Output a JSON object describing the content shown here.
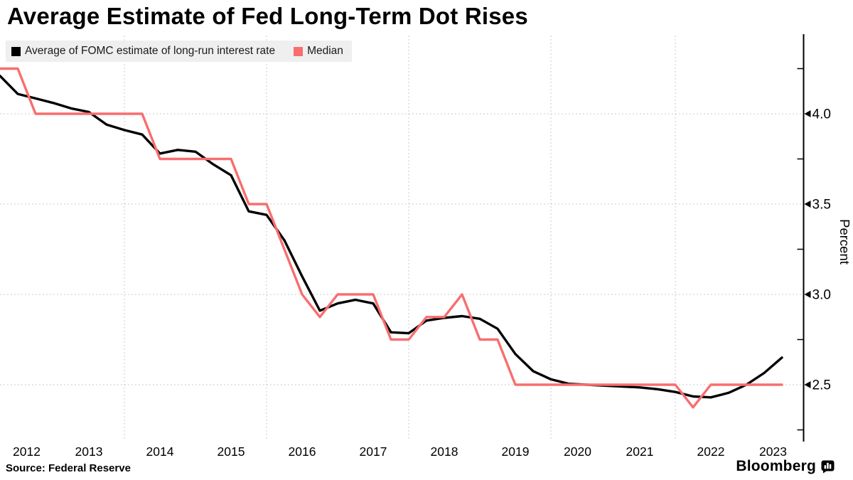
{
  "title": "Average Estimate of Fed Long-Term Dot Rises",
  "legend": {
    "average_label": "Average of FOMC estimate of long-run interest rate",
    "median_label": "Median"
  },
  "source": "Source: Federal Reserve",
  "brand": "Bloomberg",
  "colors": {
    "average": "#000000",
    "median": "#f86e6e",
    "grid": "#cbcbcb",
    "axis": "#000000",
    "legend_bg": "#efefef"
  },
  "chart_data": {
    "type": "line",
    "title": "Average Estimate of Fed Long-Term Dot Rises",
    "xlabel": "",
    "ylabel": "Percent",
    "ylim": [
      2.19,
      4.43
    ],
    "grid": "dashed",
    "legend_position": "top-left",
    "y_major_ticks": [
      {
        "value": 4.0,
        "label": "4.0"
      },
      {
        "value": 3.5,
        "label": "3.5"
      },
      {
        "value": 3.0,
        "label": "3.0"
      },
      {
        "value": 2.5,
        "label": "2.5"
      }
    ],
    "y_minor_ticks": [
      4.25,
      3.75,
      3.25,
      2.75,
      2.25
    ],
    "x_gridline_slots": [
      7,
      15,
      23,
      31,
      38
    ],
    "x_year_labels": [
      {
        "label": "2012",
        "slot": 1.5
      },
      {
        "label": "2013",
        "slot": 5
      },
      {
        "label": "2014",
        "slot": 9
      },
      {
        "label": "2015",
        "slot": 13
      },
      {
        "label": "2016",
        "slot": 17
      },
      {
        "label": "2017",
        "slot": 21
      },
      {
        "label": "2018",
        "slot": 25
      },
      {
        "label": "2019",
        "slot": 29
      },
      {
        "label": "2020",
        "slot": 32.5
      },
      {
        "label": "2021",
        "slot": 36
      },
      {
        "label": "2022",
        "slot": 40
      },
      {
        "label": "2023",
        "slot": 43.5
      }
    ],
    "dates": [
      "Jan 2012",
      "Apr 2012",
      "Jun 2012",
      "Sep 2012",
      "Mar 2013",
      "Jun 2013",
      "Sep 2013",
      "Dec 2013",
      "Mar 2014",
      "Jun 2014",
      "Sep 2014",
      "Dec 2014",
      "Mar 2015",
      "Jun 2015",
      "Sep 2015",
      "Dec 2015",
      "Mar 2016",
      "Jun 2016",
      "Sep 2016",
      "Dec 2016",
      "Mar 2017",
      "Jun 2017",
      "Sep 2017",
      "Dec 2017",
      "Mar 2018",
      "Jun 2018",
      "Sep 2018",
      "Dec 2018",
      "Mar 2019",
      "Jun 2019",
      "Sep 2019",
      "Dec 2019",
      "Jun 2020",
      "Sep 2020",
      "Dec 2020",
      "Mar 2021",
      "Jun 2021",
      "Sep 2021",
      "Dec 2021",
      "Mar 2022",
      "Jun 2022",
      "Sep 2022",
      "Dec 2022",
      "Mar 2023",
      "Jun 2023"
    ],
    "series": [
      {
        "name": "Average of FOMC estimate of long-run interest rate",
        "color": "#000000",
        "values": [
          4.21,
          4.11,
          4.085,
          4.06,
          4.03,
          4.01,
          3.94,
          3.91,
          3.885,
          3.78,
          3.8,
          3.79,
          3.72,
          3.66,
          3.46,
          3.44,
          3.3,
          3.1,
          2.91,
          2.95,
          2.97,
          2.95,
          2.79,
          2.785,
          2.855,
          2.87,
          2.88,
          2.865,
          2.81,
          2.67,
          2.575,
          2.53,
          2.505,
          2.5,
          2.495,
          2.49,
          2.485,
          2.475,
          2.46,
          2.435,
          2.43,
          2.455,
          2.5,
          2.565,
          2.65
        ]
      },
      {
        "name": "Median",
        "color": "#f86e6e",
        "values": [
          4.25,
          4.25,
          4.0,
          4.0,
          4.0,
          4.0,
          4.0,
          4.0,
          4.0,
          3.75,
          3.75,
          3.75,
          3.75,
          3.75,
          3.5,
          3.5,
          3.25,
          3.0,
          2.875,
          3.0,
          3.0,
          3.0,
          2.75,
          2.75,
          2.875,
          2.875,
          3.0,
          2.75,
          2.75,
          2.5,
          2.5,
          2.5,
          2.5,
          2.5,
          2.5,
          2.5,
          2.5,
          2.5,
          2.5,
          2.375,
          2.5,
          2.5,
          2.5,
          2.5,
          2.5
        ]
      }
    ]
  }
}
